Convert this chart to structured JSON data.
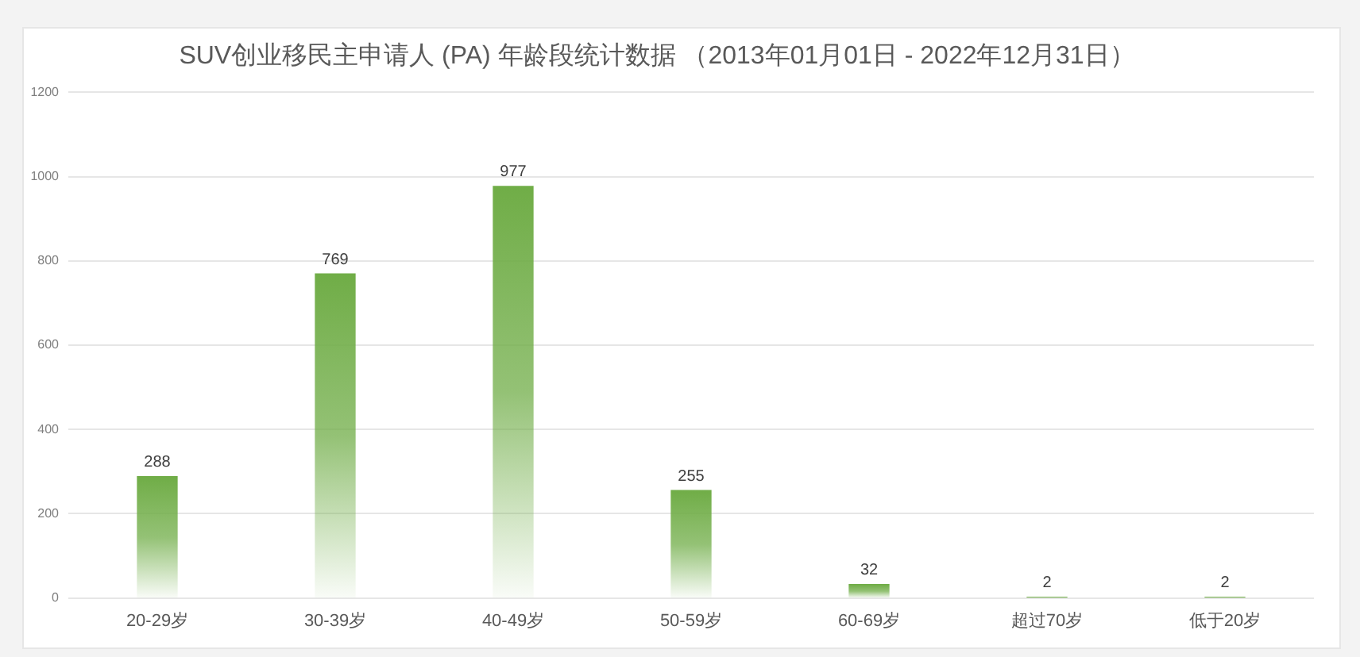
{
  "chart_data": {
    "type": "bar",
    "title": "SUV创业移民主申请人 (PA) 年龄段统计数据 （2013年01月01日 - 2022年12月31日）",
    "categories": [
      "20-29岁",
      "30-39岁",
      "40-49岁",
      "50-59岁",
      "60-69岁",
      "超过70岁",
      "低于20岁"
    ],
    "values": [
      288,
      769,
      977,
      255,
      32,
      2,
      2
    ],
    "color": "#70ad47",
    "ylim": [
      0,
      1200
    ],
    "yticks": [
      0,
      200,
      400,
      600,
      800,
      1000,
      1200
    ],
    "grid": "y",
    "data_labels": true
  }
}
